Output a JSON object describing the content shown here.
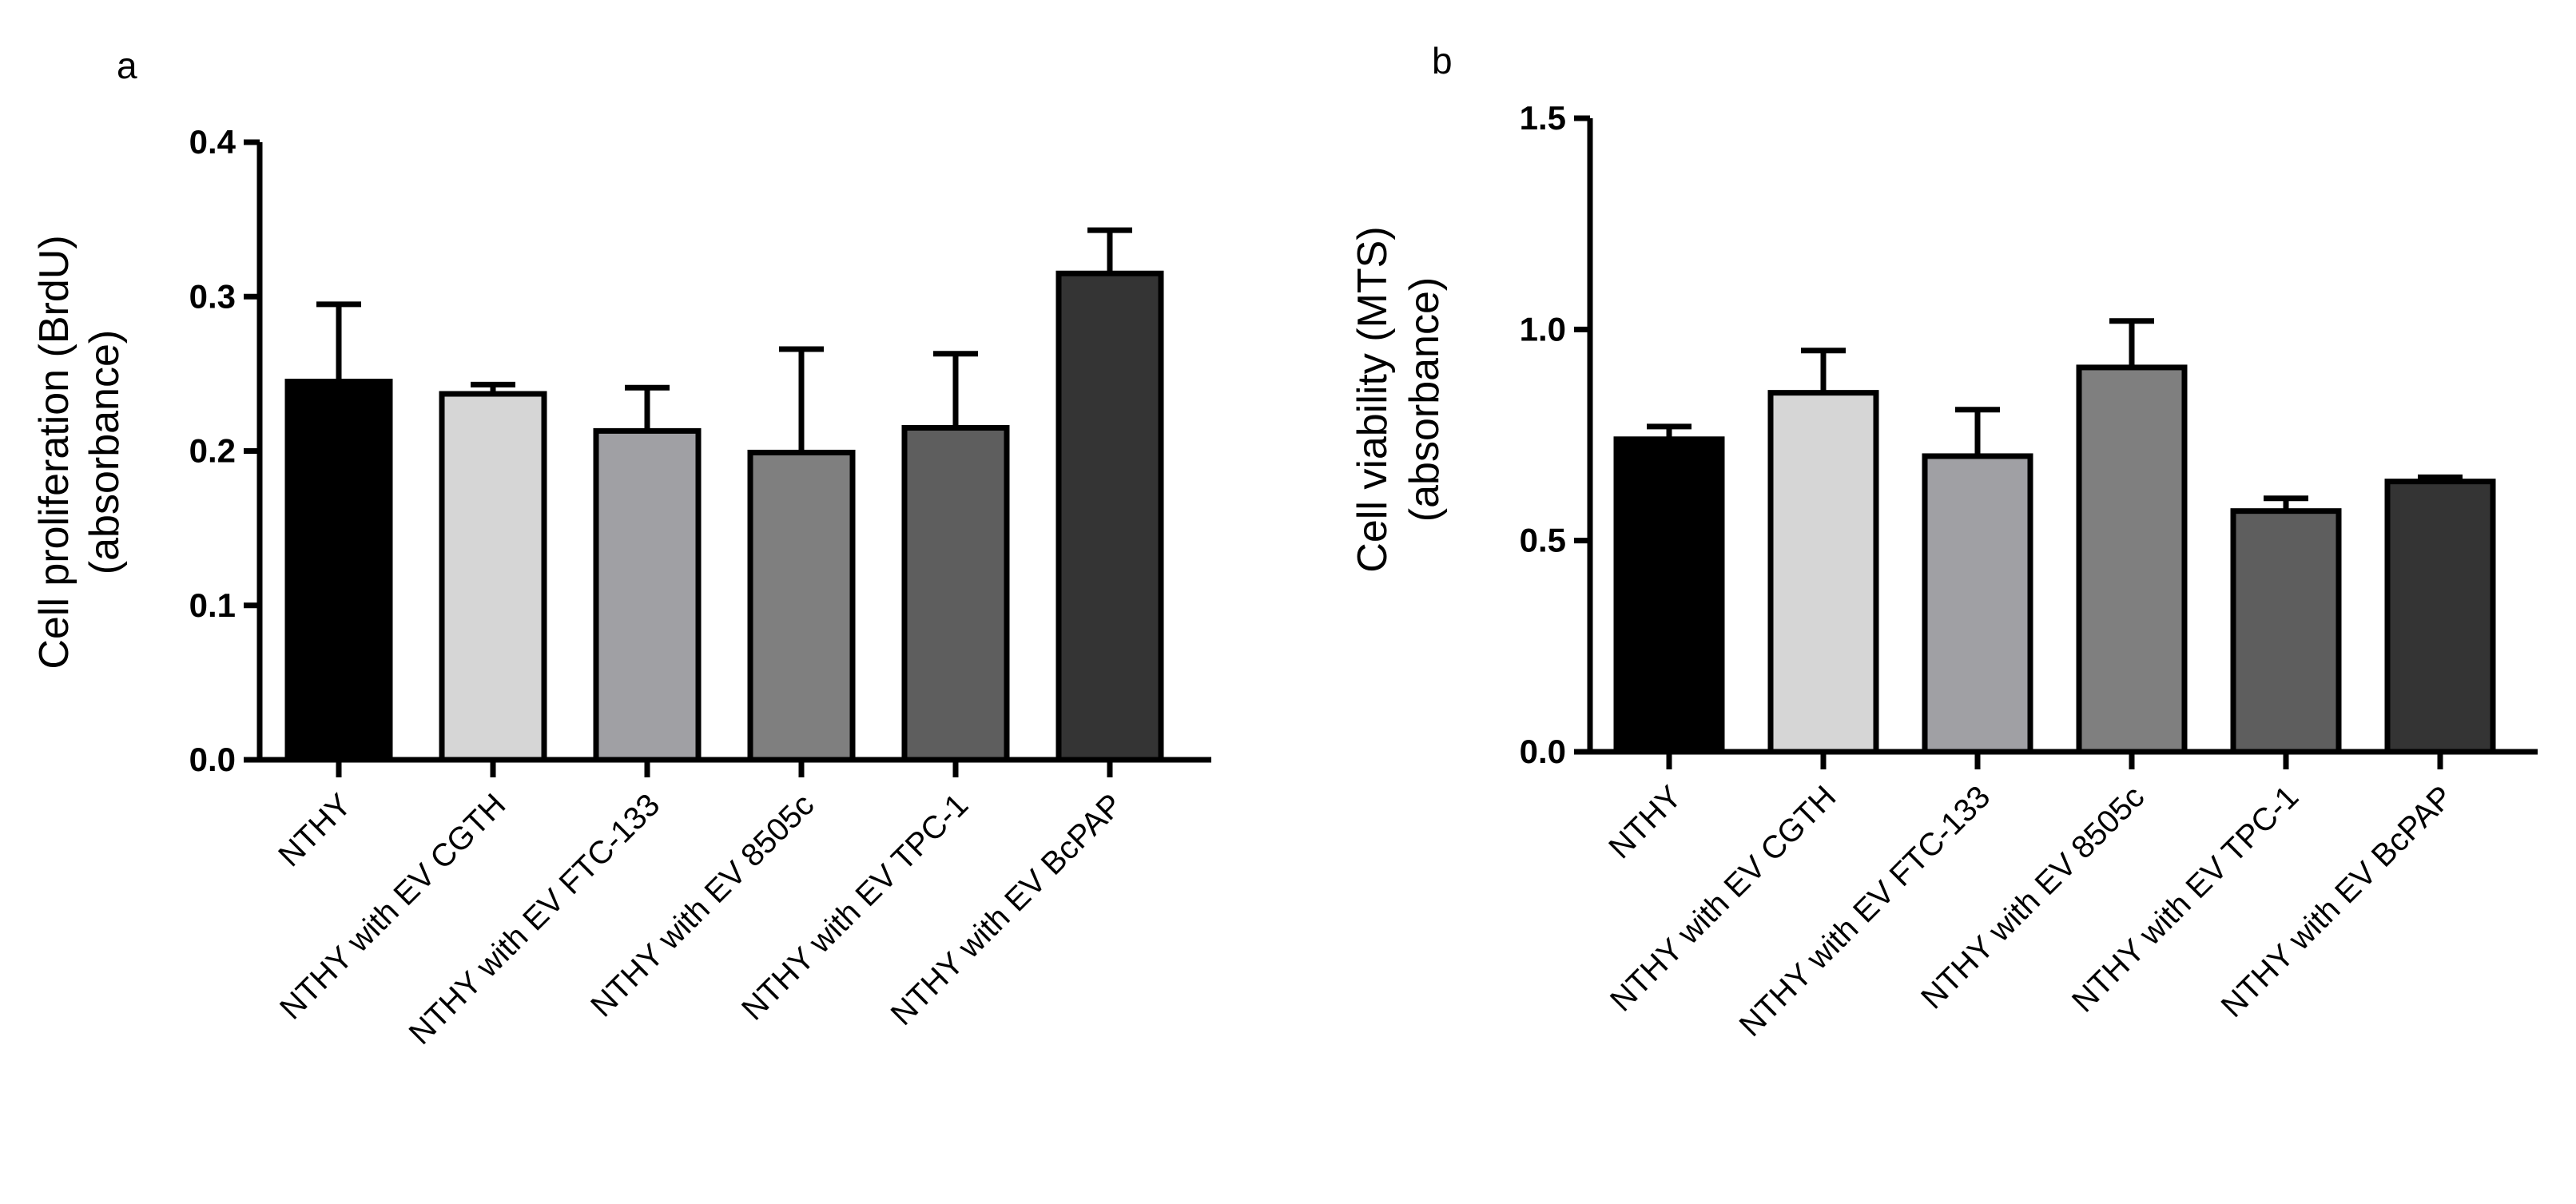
{
  "chart_data": [
    {
      "type": "bar",
      "panel_label": "a",
      "ylabel_line1": "Cell proliferation (BrdU)",
      "ylabel_line2": "(absorbance)",
      "ylim": [
        0,
        0.4
      ],
      "yticks": [
        0.0,
        0.1,
        0.2,
        0.3,
        0.4
      ],
      "ytick_labels": [
        "0.0",
        "0.1",
        "0.2",
        "0.3",
        "0.4"
      ],
      "categories": [
        "NTHY",
        "NTHY with EV CGTH",
        "NTHY with EV FTC-133",
        "NTHY with EV 8505c",
        "NTHY with EV TPC-1",
        "NTHY with EV BcPAP"
      ],
      "values": [
        0.245,
        0.237,
        0.213,
        0.199,
        0.215,
        0.315
      ],
      "errors": [
        0.05,
        0.006,
        0.028,
        0.067,
        0.048,
        0.028
      ],
      "colors": [
        "#000000",
        "#d6d6d6",
        "#a0a0a4",
        "#7f7f7f",
        "#5e5e5e",
        "#343434"
      ]
    },
    {
      "type": "bar",
      "panel_label": "b",
      "ylabel_line1": "Cell viability (MTS)",
      "ylabel_line2": "(absorbance)",
      "ylim": [
        0,
        1.5
      ],
      "yticks": [
        0.0,
        0.5,
        1.0,
        1.5
      ],
      "ytick_labels": [
        "0.0",
        "0.5",
        "1.0",
        "1.5"
      ],
      "categories": [
        "NTHY",
        "NTHY with EV CGTH",
        "NTHY with EV FTC-133",
        "NTHY with EV 8505c",
        "NTHY with EV TPC-1",
        "NTHY with EV BcPAP"
      ],
      "values": [
        0.74,
        0.85,
        0.7,
        0.91,
        0.57,
        0.64
      ],
      "errors": [
        0.03,
        0.1,
        0.11,
        0.11,
        0.03,
        0.01
      ],
      "colors": [
        "#000000",
        "#d6d6d6",
        "#a0a0a4",
        "#7f7f7f",
        "#5e5e5e",
        "#343434"
      ]
    }
  ]
}
